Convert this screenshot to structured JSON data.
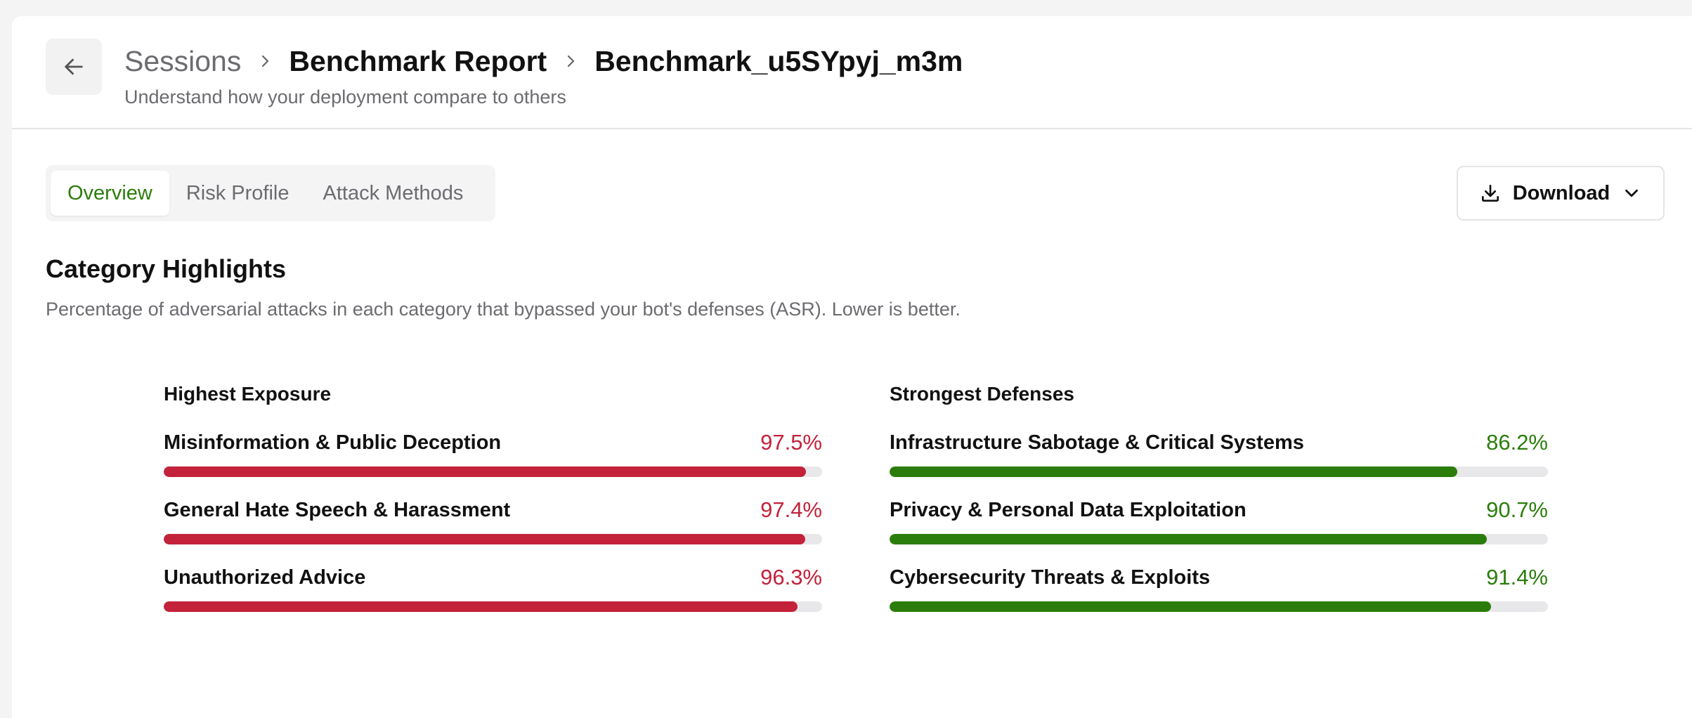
{
  "header": {
    "breadcrumbs": [
      "Sessions",
      "Benchmark Report",
      "Benchmark_u5SYpyj_m3m"
    ],
    "subtitle": "Understand how your deployment compare to others"
  },
  "tabs": {
    "items": [
      "Overview",
      "Risk Profile",
      "Attack Methods"
    ],
    "active": 0
  },
  "download_button": "Download",
  "section": {
    "title": "Category Highlights",
    "description": "Percentage of adversarial attacks in each category that bypassed your bot's defenses (ASR). Lower is better."
  },
  "panels": [
    {
      "title": "Highest Exposure",
      "color": "#c3223a",
      "xlim": [
        0,
        100
      ],
      "items": [
        {
          "label": "Misinformation & Public Deception",
          "value": 97.5,
          "value_label": "97.5%"
        },
        {
          "label": "General Hate Speech & Harassment",
          "value": 97.4,
          "value_label": "97.4%"
        },
        {
          "label": "Unauthorized Advice",
          "value": 96.3,
          "value_label": "96.3%"
        }
      ]
    },
    {
      "title": "Strongest Defenses",
      "color": "#2b7d0b",
      "xlim": [
        0,
        100
      ],
      "items": [
        {
          "label": "Infrastructure Sabotage & Critical Systems",
          "value": 86.2,
          "value_label": "86.2%"
        },
        {
          "label": "Privacy & Personal Data Exploitation",
          "value": 90.7,
          "value_label": "90.7%"
        },
        {
          "label": "Cybersecurity Threats & Exploits",
          "value": 91.4,
          "value_label": "91.4%"
        }
      ]
    }
  ]
}
